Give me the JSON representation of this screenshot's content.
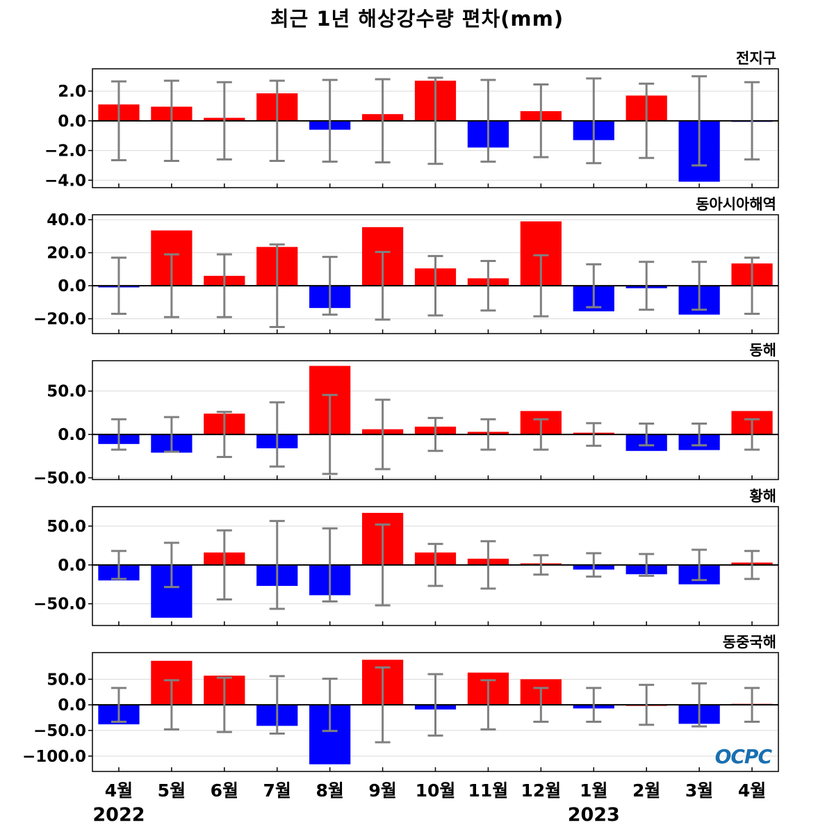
{
  "title": "최근 1년 해상강수량 편차(mm)",
  "logo_text": "OCPC",
  "colors": {
    "positive": "#ff0000",
    "negative": "#0000ff",
    "error": "#808080",
    "zero": "#000000",
    "grid": "#d9d9d9"
  },
  "chart_data": {
    "type": "bar",
    "categories": [
      "4월",
      "5월",
      "6월",
      "7월",
      "8월",
      "9월",
      "10월",
      "11월",
      "12월",
      "1월",
      "2월",
      "3월",
      "4월"
    ],
    "years": [
      {
        "label": "2022",
        "category_index": 0
      },
      {
        "label": "2023",
        "category_index": 9
      }
    ],
    "panels": [
      {
        "title": "전지구",
        "ylim": [
          -4.5,
          3.5
        ],
        "yticks": [
          2.0,
          0.0,
          -2.0,
          -4.0
        ],
        "tick_labels": [
          "2.0",
          "0.0",
          "−2.0",
          "−4.0"
        ],
        "values": [
          1.1,
          0.95,
          0.2,
          1.85,
          -0.6,
          0.45,
          2.7,
          -1.8,
          0.65,
          -1.3,
          1.7,
          -4.1,
          -0.05
        ],
        "error": [
          2.65,
          2.7,
          2.6,
          2.7,
          2.75,
          2.8,
          2.9,
          2.75,
          2.45,
          2.85,
          2.5,
          3.0,
          2.6
        ]
      },
      {
        "title": "동아시아해역",
        "ylim": [
          -29,
          43
        ],
        "yticks": [
          40.0,
          20.0,
          0.0,
          -20.0
        ],
        "tick_labels": [
          "40.0",
          "20.0",
          "0.0",
          "−20.0"
        ],
        "values": [
          -1,
          33.5,
          6,
          23.5,
          -13.5,
          35.5,
          10.5,
          4.5,
          39,
          -15.5,
          -1.5,
          -17.5,
          13.5
        ],
        "error": [
          17,
          19,
          19,
          25,
          17.5,
          20.5,
          18,
          15,
          18.5,
          13,
          14.5,
          14.5,
          17
        ]
      },
      {
        "title": "동해",
        "ylim": [
          -52,
          85
        ],
        "yticks": [
          50.0,
          0.0,
          -50.0
        ],
        "tick_labels": [
          "50.0",
          "0.0",
          "−50.0"
        ],
        "values": [
          -11,
          -21,
          24,
          -16,
          79,
          6,
          9,
          3,
          27,
          2,
          -19,
          -18,
          27
        ],
        "error": [
          17.5,
          20,
          26,
          37,
          45.5,
          40,
          19,
          17.5,
          17.5,
          13,
          12.5,
          12.5,
          17.5
        ]
      },
      {
        "title": "황해",
        "ylim": [
          -78,
          75
        ],
        "yticks": [
          50.0,
          0.0,
          -50.0
        ],
        "tick_labels": [
          "50.0",
          "0.0",
          "−50.0"
        ],
        "values": [
          -20,
          -68,
          16,
          -27,
          -39,
          67,
          16,
          8,
          2,
          -6,
          -12,
          -25,
          3
        ],
        "error": [
          18,
          28.5,
          44.5,
          56.5,
          47,
          52,
          27,
          30.5,
          12.5,
          15,
          14,
          19.5,
          18
        ]
      },
      {
        "title": "동중국해",
        "ylim": [
          -130,
          102
        ],
        "yticks": [
          50.0,
          0.0,
          -50.0,
          -100.0
        ],
        "tick_labels": [
          "50.0",
          "0.0",
          "−50.0",
          "−100.0"
        ],
        "values": [
          -38,
          86,
          57,
          -41,
          -116,
          88,
          -9,
          63,
          50,
          -7,
          0,
          -37,
          2
        ],
        "error": [
          33,
          48,
          53,
          56,
          51,
          73,
          60,
          48,
          33,
          33,
          39,
          42,
          33
        ]
      }
    ]
  }
}
